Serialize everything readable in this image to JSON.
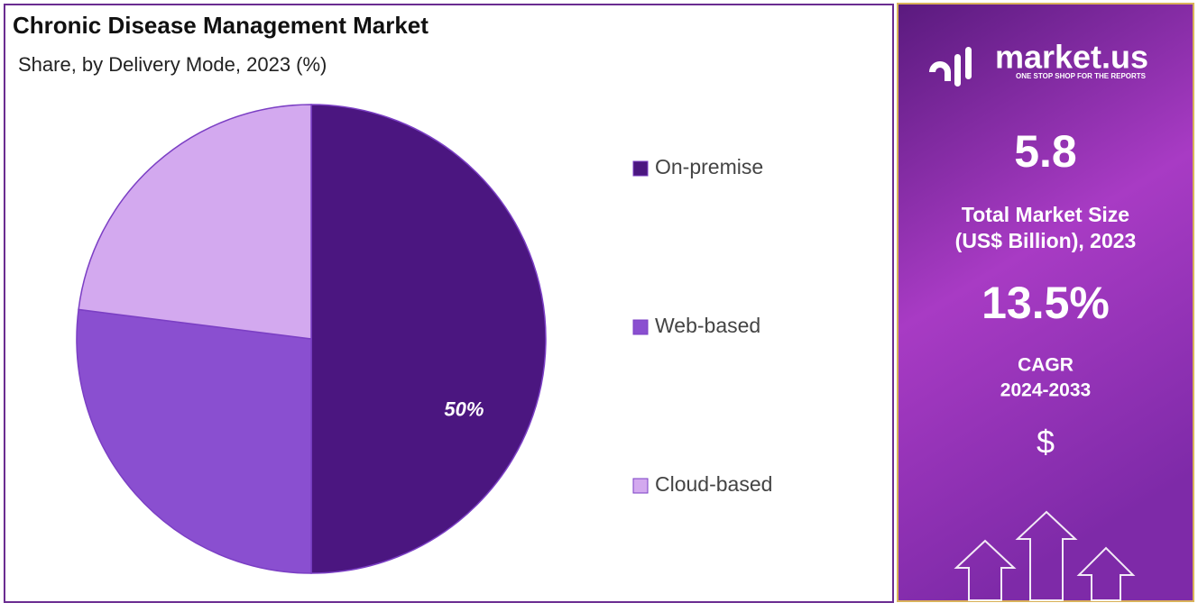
{
  "chart_data": {
    "type": "pie",
    "title": "Chronic Disease Management Market",
    "subtitle": "Share, by Delivery Mode, 2023 (%)",
    "categories": [
      "On-premise",
      "Web-based",
      "Cloud-based"
    ],
    "values": [
      50,
      27,
      23
    ],
    "value_labels": [
      "50%",
      null,
      null
    ],
    "colors": [
      "#4b1680",
      "#8a4fd0",
      "#d3a9ef"
    ],
    "legend": "right"
  },
  "side_panel": {
    "logo": "market.us",
    "tagline": "ONE STOP SHOP FOR THE REPORTS",
    "market_size": "5.8",
    "market_size_label": [
      "Total Market Size",
      "(US$ Billion), 2023"
    ],
    "cagr": "13.5%",
    "cagr_label": [
      "CAGR",
      "2024-2033"
    ],
    "currency_icon": "$"
  }
}
